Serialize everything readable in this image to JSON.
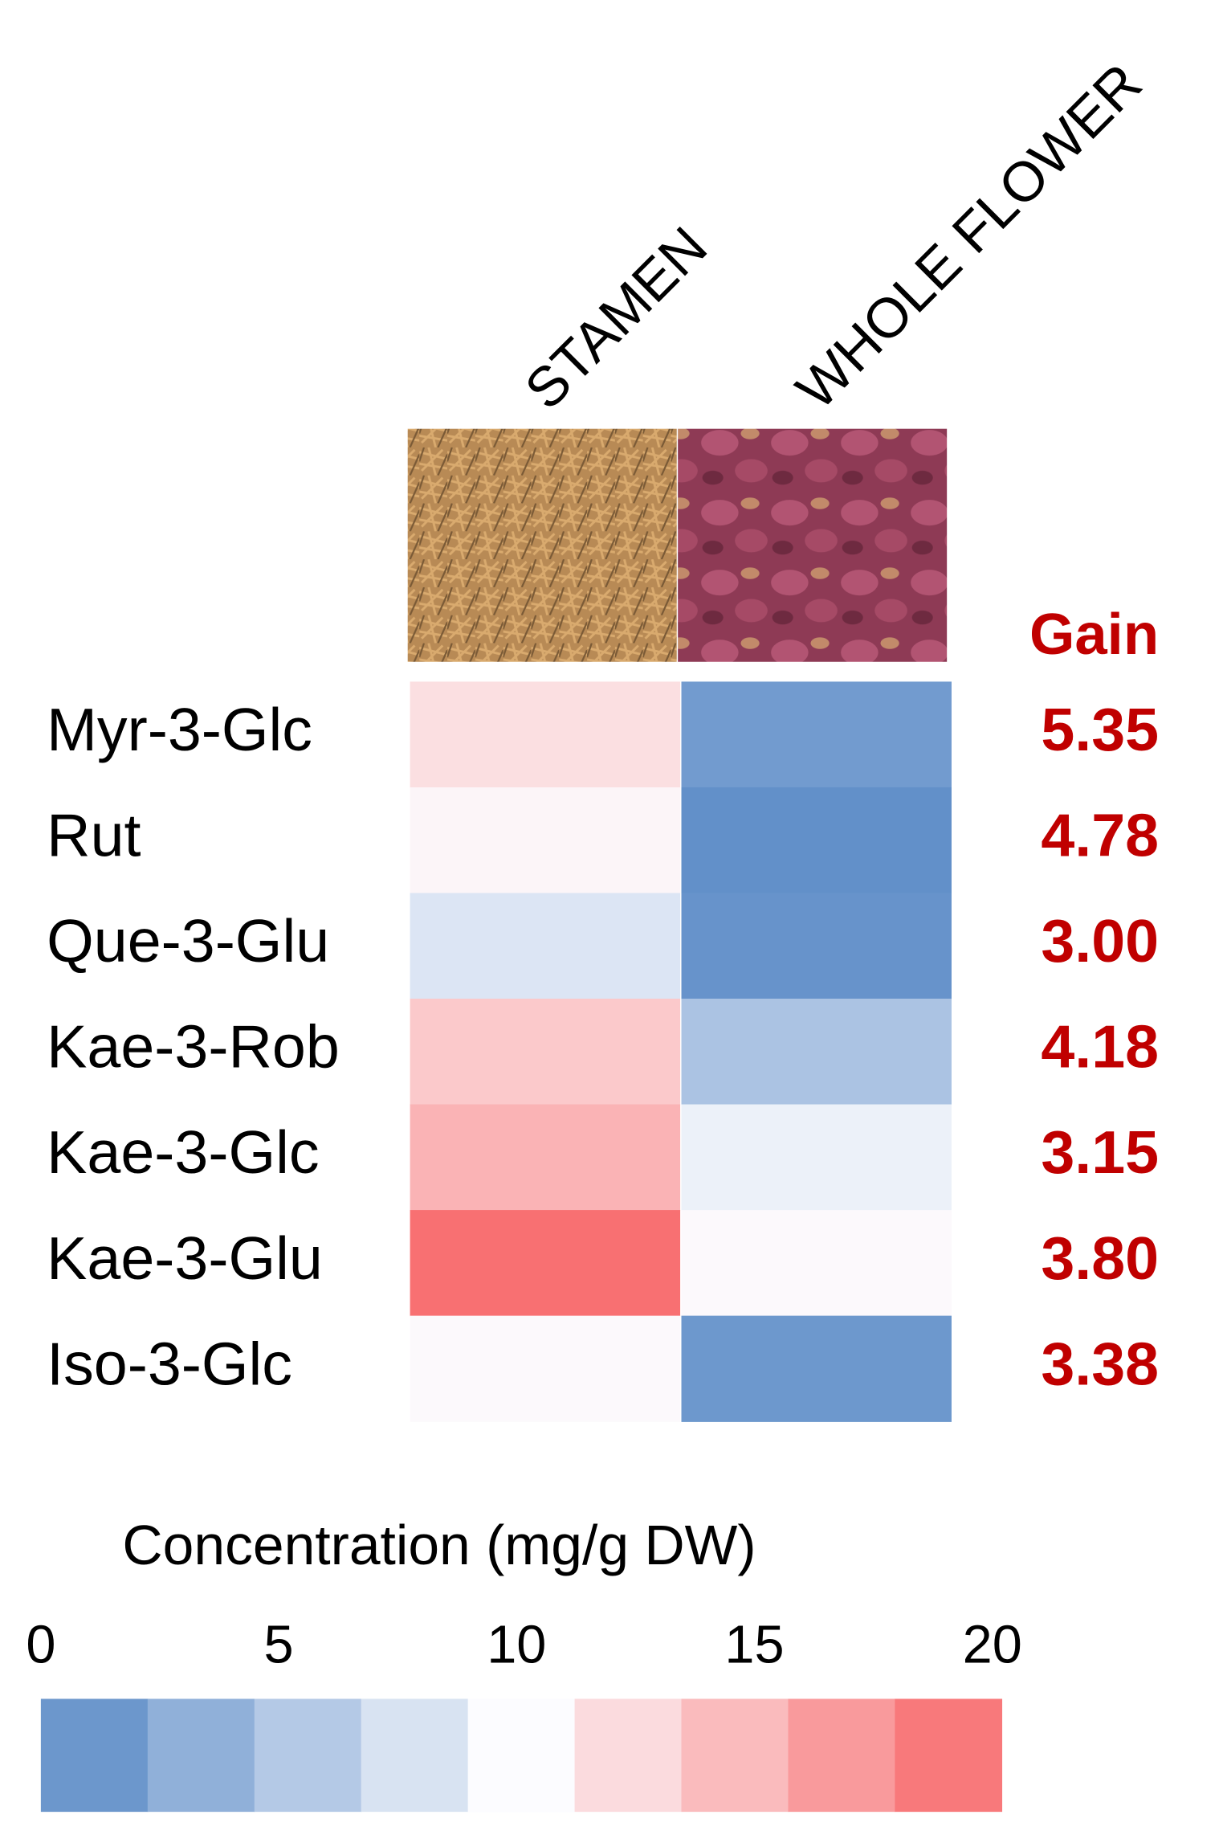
{
  "chart_data": {
    "type": "heatmap",
    "columns": [
      "STAMEN",
      "WHOLE FLOWER"
    ],
    "rows": [
      "Myr-3-Glc",
      "Rut",
      "Que-3-Glu",
      "Kae-3-Rob",
      "Kae-3-Glc",
      "Kae-3-Glu",
      "Iso-3-Glc"
    ],
    "values": [
      [
        12,
        1.5
      ],
      [
        10.5,
        0.5
      ],
      [
        8,
        0.8
      ],
      [
        13.5,
        5
      ],
      [
        15,
        9
      ],
      [
        19.5,
        10.2
      ],
      [
        10.2,
        1.2
      ]
    ],
    "colors": {
      "low": "#5a8ac6",
      "mid": "#fcfcff",
      "high": "#f8696b"
    },
    "gain": {
      "title": "Gain",
      "values": [
        5.35,
        4.78,
        3.0,
        4.18,
        3.15,
        3.8,
        3.38
      ],
      "value_labels": [
        "5.35",
        "4.78",
        "3.00",
        "4.18",
        "3.15",
        "3.80",
        "3.38"
      ],
      "color": "#c00000"
    },
    "colorbar": {
      "title": "Concentration (mg/g DW)",
      "lim": [
        0,
        20
      ],
      "ticks": [
        0,
        5,
        10,
        15,
        20
      ],
      "steps": 9
    }
  }
}
